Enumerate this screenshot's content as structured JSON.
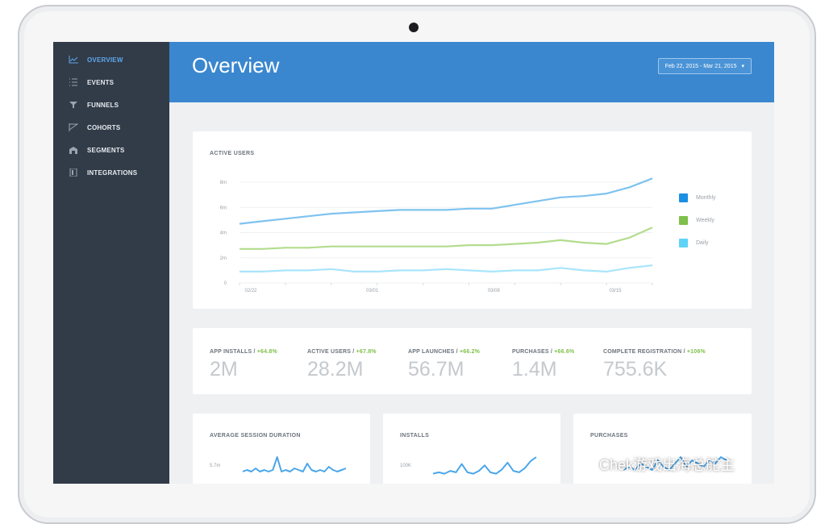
{
  "sidebar": {
    "items": [
      {
        "label": "OVERVIEW",
        "icon": "line-chart-icon",
        "active": true
      },
      {
        "label": "EVENTS",
        "icon": "list-icon",
        "active": false
      },
      {
        "label": "FUNNELS",
        "icon": "funnel-icon",
        "active": false
      },
      {
        "label": "COHORTS",
        "icon": "cohorts-icon",
        "active": false
      },
      {
        "label": "SEGMENTS",
        "icon": "segments-icon",
        "active": false
      },
      {
        "label": "INTEGRATIONS",
        "icon": "integrations-icon",
        "active": false
      }
    ]
  },
  "header": {
    "title": "Overview",
    "date_range": "Feb 22, 2015 - Mar 21, 2015"
  },
  "active_users": {
    "title": "ACTIVE USERS",
    "legend": [
      {
        "name": "Monthly",
        "color": "#1b8fe3"
      },
      {
        "name": "Weekly",
        "color": "#7fc04a"
      },
      {
        "name": "Daily",
        "color": "#5fd3f7"
      }
    ]
  },
  "chart_data": [
    {
      "type": "line",
      "title": "ACTIVE USERS",
      "x_ticks": [
        "02/22",
        "03/01",
        "03/08",
        "03/15"
      ],
      "y_ticks": [
        "0",
        "2m",
        "4m",
        "6m",
        "8m"
      ],
      "ylim": [
        0,
        8
      ],
      "series": [
        {
          "name": "Monthly",
          "color": "#7fc3ef",
          "values": [
            4.7,
            4.9,
            5.1,
            5.3,
            5.5,
            5.6,
            5.7,
            5.8,
            5.8,
            5.8,
            5.9,
            5.9,
            6.2,
            6.5,
            6.8,
            6.9,
            7.1,
            7.6,
            8.3
          ]
        },
        {
          "name": "Weekly",
          "color": "#b3dc8d",
          "values": [
            2.7,
            2.7,
            2.8,
            2.8,
            2.9,
            2.9,
            2.9,
            2.9,
            2.9,
            2.9,
            3.0,
            3.0,
            3.1,
            3.2,
            3.4,
            3.2,
            3.1,
            3.6,
            4.4
          ]
        },
        {
          "name": "Daily",
          "color": "#a9e5fb",
          "values": [
            0.9,
            0.9,
            1.0,
            1.0,
            1.1,
            0.9,
            0.9,
            1.0,
            1.0,
            1.1,
            1.0,
            0.9,
            1.0,
            1.0,
            1.2,
            1.0,
            0.9,
            1.2,
            1.4
          ]
        }
      ]
    },
    {
      "type": "line",
      "title": "AVERAGE SESSION DURATION",
      "y_ticks": [
        "5.7m"
      ],
      "series": [
        {
          "values": [
            3,
            4,
            3,
            5,
            3,
            4,
            3,
            4,
            12,
            3,
            4,
            3,
            5,
            4,
            3,
            8,
            4,
            3,
            4,
            3,
            6,
            4,
            3,
            4,
            5
          ]
        }
      ]
    },
    {
      "type": "line",
      "title": "INSTALLS",
      "y_ticks": [
        "100K"
      ],
      "series": [
        {
          "values": [
            2,
            3,
            2,
            4,
            3,
            9,
            3,
            2,
            4,
            8,
            3,
            2,
            5,
            10,
            4,
            3,
            6,
            11,
            14
          ]
        }
      ]
    },
    {
      "type": "line",
      "title": "PURCHASES",
      "series": [
        {
          "values": [
            2,
            3,
            2,
            4,
            3,
            2,
            5,
            3,
            2,
            4,
            6,
            3,
            5,
            4,
            3,
            5,
            4,
            6,
            5
          ]
        }
      ]
    }
  ],
  "stats": [
    {
      "label": "APP INSTALLS",
      "change": "+64.8%",
      "value": "2M"
    },
    {
      "label": "ACTIVE USERS",
      "change": "+67.8%",
      "value": "28.2M"
    },
    {
      "label": "APP LAUNCHES",
      "change": "+66.2%",
      "value": "56.7M"
    },
    {
      "label": "PURCHASES",
      "change": "+66.6%",
      "value": "1.4M"
    },
    {
      "label": "COMPLETE REGISTRATION",
      "change": "+106%",
      "value": "755.6K"
    }
  ],
  "cards": {
    "session_title": "AVERAGE SESSION DURATION",
    "installs_title": "INSTALLS",
    "purchases_title": "PURCHASES"
  },
  "watermark": "Chek游戏出海总舵主",
  "colors": {
    "sidebar": "#323b48",
    "header": "#3a87cf",
    "accent": "#1b8fe3",
    "positive": "#7fc04a"
  }
}
